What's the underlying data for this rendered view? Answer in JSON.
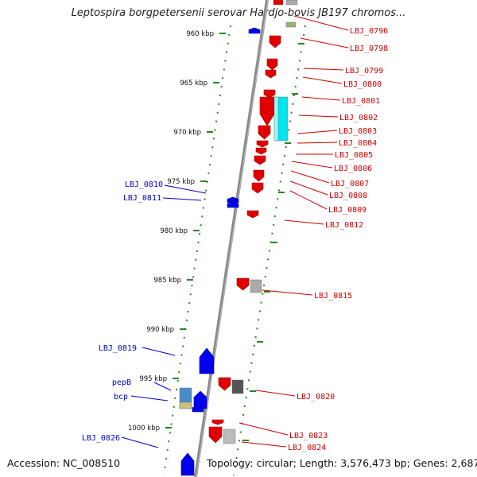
{
  "title": "Leptospira borgpetersenii serovar Hardjo-bovis JB197 chromos...",
  "footer": {
    "accession": "Accession: NC_008510",
    "summary": "Topology: circular; Length: 3,576,473 bp; Genes: 2,687"
  },
  "colors": {
    "forward_gene": "#e00000",
    "reverse_gene": "#0000ee",
    "forward_label": "#cc0000",
    "reverse_label": "#0000cc",
    "backbone": "#888888",
    "tick": "#228822",
    "cyan_feature": "#00e5ee",
    "gray_feature": "#aaaaaa"
  },
  "kbp_ticks": [
    {
      "kbp": 960,
      "label": "960 kbp"
    },
    {
      "kbp": 965,
      "label": "965 kbp"
    },
    {
      "kbp": 970,
      "label": "970 kbp"
    },
    {
      "kbp": 975,
      "label": "975 kbp"
    },
    {
      "kbp": 980,
      "label": "980 kbp"
    },
    {
      "kbp": 985,
      "label": "985 kbp"
    },
    {
      "kbp": 990,
      "label": "990 kbp"
    },
    {
      "kbp": 995,
      "label": "995 kbp"
    },
    {
      "kbp": 1000,
      "label": "1000 kbp"
    }
  ],
  "forward_labels": [
    "LBJ_0796",
    "LBJ_0798",
    "LBJ_0799",
    "LBJ_0800",
    "LBJ_0801",
    "LBJ_0802",
    "LBJ_0803",
    "LBJ_0804",
    "LBJ_0805",
    "LBJ_0806",
    "LBJ_0807",
    "LBJ_0808",
    "LBJ_0809",
    "LBJ_0812",
    "LBJ_0815",
    "LBJ_0820",
    "LBJ_0823",
    "LBJ_0824"
  ],
  "reverse_labels": [
    "LBJ_0810",
    "LBJ_0811",
    "LBJ_0819",
    "pepB",
    "bcp",
    "LBJ_0826"
  ]
}
